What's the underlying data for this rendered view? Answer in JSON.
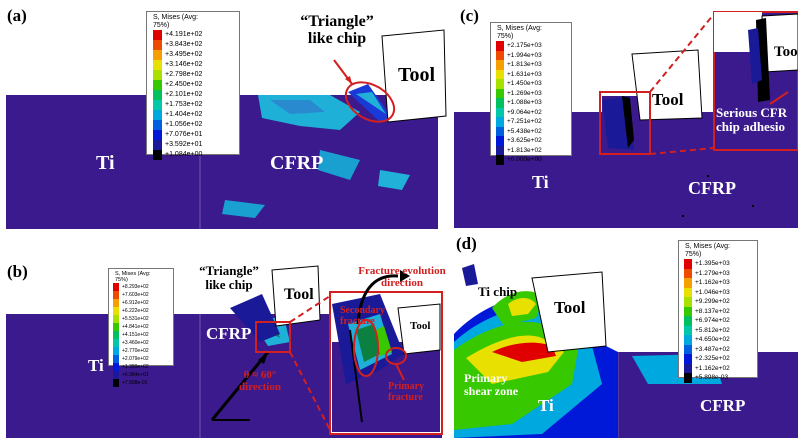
{
  "panels": {
    "a": {
      "label": "(a)",
      "materials": [
        "Ti",
        "CFRP"
      ],
      "tool": "Tool",
      "annotation": "“Triangle” like chip",
      "legend": {
        "title": "S, Mises (Avg: 75%)",
        "values": [
          "+4.191e+02",
          "+3.843e+02",
          "+3.495e+02",
          "+3.146e+02",
          "+2.798e+02",
          "+2.450e+02",
          "+2.101e+02",
          "+1.753e+02",
          "+1.404e+02",
          "+1.056e+02",
          "+7.076e+01",
          "+3.592e+01",
          "+1.084e+00"
        ]
      }
    },
    "b": {
      "label": "(b)",
      "materials": [
        "Ti",
        "CFRP"
      ],
      "tool": "Tool",
      "annotation": "“Triangle” like chip",
      "angle_note": "θ ≈ 60° direction",
      "inset": {
        "fracture_direction": "Fracture evolution direction",
        "secondary": "Secondary fracture",
        "primary": "Primary fracture",
        "tool": "Tool"
      },
      "legend": {
        "title": "S, Mises (Avg: 75%)",
        "values": [
          "+8.293e+02",
          "+7.603e+02",
          "+6.912e+02",
          "+6.222e+02",
          "+5.531e+02",
          "+4.841e+02",
          "+4.151e+02",
          "+3.460e+02",
          "+2.770e+02",
          "+2.079e+02",
          "+1.389e+02",
          "+6.984e+01",
          "+7.908e-01"
        ]
      }
    },
    "c": {
      "label": "(c)",
      "materials": [
        "Ti",
        "CFRP"
      ],
      "tool": "Tool",
      "inset": {
        "tool": "Too",
        "annotation": "Serious CFR chip adhesio"
      },
      "legend": {
        "title": "S, Mises (Avg: 75%)",
        "values": [
          "+2.175e+03",
          "+1.994e+03",
          "+1.813e+03",
          "+1.631e+03",
          "+1.450e+03",
          "+1.269e+03",
          "+1.088e+03",
          "+9.064e+02",
          "+7.251e+02",
          "+5.438e+02",
          "+3.625e+02",
          "+1.813e+02",
          "+0.000e+00"
        ]
      }
    },
    "d": {
      "label": "(d)",
      "materials": [
        "Ti",
        "CFRP"
      ],
      "tool": "Tool",
      "chip": "Ti chip",
      "zone": "Primary shear zone",
      "legend": {
        "title": "S, Mises (Avg: 75%)",
        "values": [
          "+1.395e+03",
          "+1.279e+03",
          "+1.162e+03",
          "+1.046e+03",
          "+9.299e+02",
          "+8.137e+02",
          "+6.974e+02",
          "+5.812e+02",
          "+4.650e+02",
          "+3.487e+02",
          "+2.325e+02",
          "+1.162e+02",
          "+5.898e-03"
        ]
      }
    }
  },
  "colors": {
    "background": "#3a1a8c",
    "scale": [
      "#e10000",
      "#ee4b00",
      "#f5a000",
      "#e8e000",
      "#a8e000",
      "#38c800",
      "#00c060",
      "#00c8a8",
      "#00a8e0",
      "#0060e0",
      "#0018d8",
      "#1a1a99",
      "#000000"
    ]
  }
}
